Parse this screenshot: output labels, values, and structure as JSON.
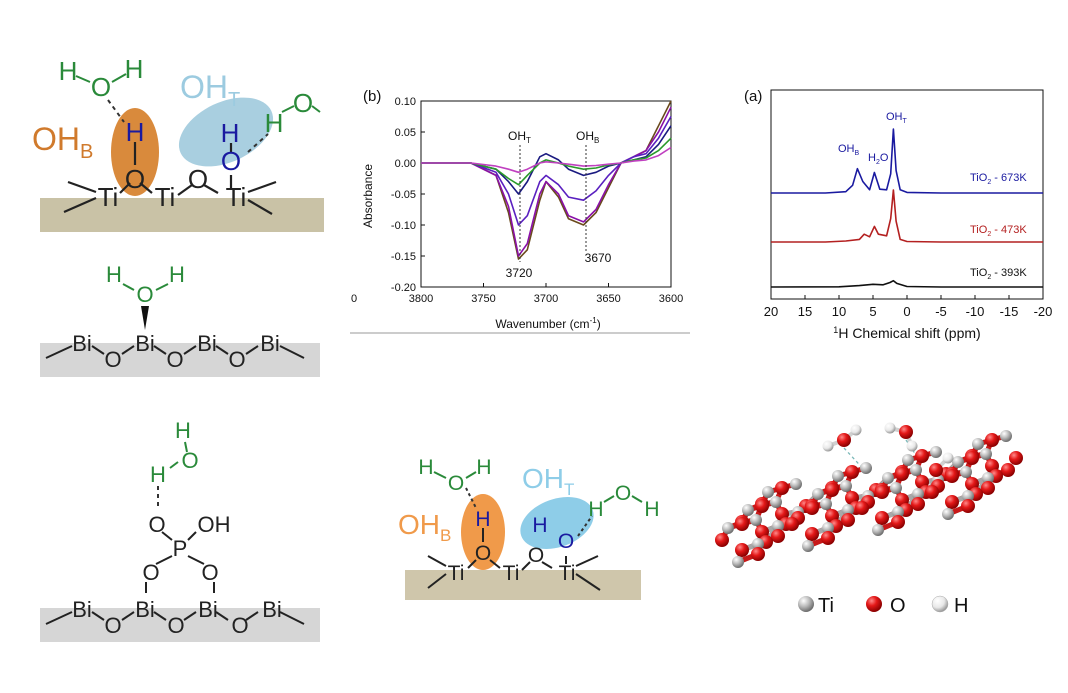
{
  "atoms": {
    "ti": "Ti",
    "o": "O",
    "h": "H",
    "bi": "Bi",
    "p": "P",
    "oh": "OH"
  },
  "labels": {
    "ohb_main": "OH",
    "ohb_sub": "B",
    "oht_main": "OH",
    "oht_sub": "T"
  },
  "ir_panel": {
    "panel_label": "(b)",
    "ylabel": "Absorbance",
    "xlabel": "Wavenumber (cm",
    "xlabel_sup": "-1",
    "xlabel_close": ")",
    "yticks": [
      "0.10",
      "0.05",
      "0.00",
      "-0.05",
      "-0.10",
      "-0.15",
      "-0.20"
    ],
    "xticks": [
      "3800",
      "3750",
      "3700",
      "3650",
      "3600"
    ],
    "annot_oht": "OH",
    "annot_oht_sub": "T",
    "annot_ohb": "OH",
    "annot_ohb_sub": "B",
    "peak1": "3720",
    "peak2": "3670",
    "left_cut_tick": "0"
  },
  "nmr_panel": {
    "panel_label": "(a)",
    "xlabel_sup": "1",
    "xlabel": "H Chemical shift (ppm)",
    "xticks": [
      "20",
      "15",
      "10",
      "5",
      "0",
      "-5",
      "-10",
      "-15",
      "-20"
    ],
    "peak_ohb": "OH",
    "peak_ohb_sub": "B",
    "peak_h2o_a": "H",
    "peak_h2o_sub": "2",
    "peak_h2o_b": "O",
    "peak_oht": "OH",
    "peak_oht_sub": "T",
    "trace1_a": "TiO",
    "trace1_sub": "2",
    "trace1_b": " - 673K",
    "trace2_a": "TiO",
    "trace2_sub": "2",
    "trace2_b": " - 473K",
    "trace3_a": "TiO",
    "trace3_sub": "2",
    "trace3_b": " - 393K"
  },
  "model_legend": {
    "ti": "Ti",
    "o": "O",
    "h": "H"
  },
  "chart_data": [
    {
      "type": "line",
      "title": "(b)",
      "xlabel": "Wavenumber (cm-1)",
      "ylabel": "Absorbance",
      "xlim": [
        3800,
        3600
      ],
      "ylim": [
        -0.2,
        0.1
      ],
      "annotations": [
        {
          "text": "OHT",
          "x": 3720
        },
        {
          "text": "OHB",
          "x": 3670
        }
      ],
      "peak_labels": [
        3720,
        3670
      ],
      "series": [
        {
          "color": "#6a4a1c",
          "x": [
            3800,
            3760,
            3740,
            3730,
            3722,
            3715,
            3705,
            3700,
            3690,
            3682,
            3670,
            3660,
            3650,
            3640,
            3630,
            3620,
            3610,
            3600
          ],
          "y": [
            0.0,
            0.0,
            -0.02,
            -0.08,
            -0.155,
            -0.14,
            -0.06,
            -0.03,
            -0.055,
            -0.09,
            -0.1,
            -0.08,
            -0.04,
            0.0,
            0.01,
            0.02,
            0.06,
            0.1
          ]
        },
        {
          "color": "#8a10a8",
          "x": [
            3800,
            3760,
            3740,
            3730,
            3722,
            3715,
            3705,
            3700,
            3690,
            3682,
            3670,
            3660,
            3650,
            3640,
            3630,
            3620,
            3610,
            3600
          ],
          "y": [
            0.0,
            0.0,
            -0.02,
            -0.07,
            -0.15,
            -0.13,
            -0.05,
            -0.03,
            -0.05,
            -0.085,
            -0.095,
            -0.075,
            -0.035,
            0.0,
            0.01,
            0.02,
            0.05,
            0.09
          ]
        },
        {
          "color": "#5a20c0",
          "x": [
            3800,
            3760,
            3740,
            3730,
            3722,
            3715,
            3705,
            3700,
            3690,
            3682,
            3670,
            3660,
            3650,
            3640,
            3630,
            3620,
            3610,
            3600
          ],
          "y": [
            0.0,
            0.0,
            -0.015,
            -0.05,
            -0.1,
            -0.085,
            -0.03,
            -0.02,
            -0.035,
            -0.055,
            -0.06,
            -0.045,
            -0.02,
            0.0,
            0.01,
            0.015,
            0.04,
            0.075
          ]
        },
        {
          "color": "#1a1a80",
          "x": [
            3800,
            3760,
            3740,
            3730,
            3722,
            3715,
            3705,
            3700,
            3690,
            3682,
            3670,
            3660,
            3650,
            3640,
            3630,
            3620,
            3610,
            3600
          ],
          "y": [
            0.0,
            0.0,
            -0.01,
            -0.03,
            -0.05,
            -0.03,
            0.01,
            0.015,
            0.005,
            -0.01,
            -0.02,
            -0.015,
            -0.005,
            0.0,
            0.005,
            0.01,
            0.03,
            0.06
          ]
        },
        {
          "color": "#2a9a2a",
          "x": [
            3800,
            3760,
            3740,
            3730,
            3722,
            3715,
            3705,
            3700,
            3690,
            3682,
            3670,
            3660,
            3650,
            3640,
            3630,
            3620,
            3610,
            3600
          ],
          "y": [
            0.0,
            0.0,
            -0.01,
            -0.025,
            -0.035,
            -0.02,
            0.0,
            0.005,
            0.0,
            -0.005,
            -0.01,
            -0.008,
            -0.003,
            0.0,
            0.005,
            0.008,
            0.02,
            0.04
          ]
        },
        {
          "color": "#c040c0",
          "x": [
            3800,
            3760,
            3740,
            3730,
            3722,
            3715,
            3705,
            3700,
            3690,
            3682,
            3670,
            3660,
            3650,
            3640,
            3630,
            3620,
            3610,
            3600
          ],
          "y": [
            0.0,
            0.0,
            -0.005,
            -0.01,
            -0.015,
            -0.01,
            0.0,
            0.002,
            0.0,
            -0.002,
            -0.005,
            -0.004,
            -0.002,
            0.0,
            0.003,
            0.005,
            0.012,
            0.025
          ]
        }
      ]
    },
    {
      "type": "line",
      "title": "(a)",
      "xlabel": "1H Chemical shift (ppm)",
      "xlim": [
        20,
        -20
      ],
      "annotations": [
        {
          "text": "OHB",
          "x": 7.3
        },
        {
          "text": "H2O",
          "x": 4.8
        },
        {
          "text": "OHT",
          "x": 2.0
        }
      ],
      "series": [
        {
          "name": "TiO2 - 673K",
          "color": "#1a1aa0",
          "x": [
            20,
            12,
            9,
            8,
            7.3,
            6.5,
            5.5,
            4.8,
            4,
            3,
            2.4,
            2,
            1.6,
            1,
            0,
            -5,
            -20
          ],
          "y": [
            0,
            0,
            0.02,
            0.12,
            0.38,
            0.18,
            0.05,
            0.32,
            0.06,
            0.05,
            0.3,
            1.0,
            0.35,
            0.05,
            0.01,
            0,
            0
          ]
        },
        {
          "name": "TiO2 - 473K",
          "color": "#b42020",
          "x": [
            20,
            12,
            9,
            7,
            6.3,
            5.5,
            4.8,
            4.2,
            3,
            2.4,
            2,
            1.6,
            1,
            0,
            -5,
            -20
          ],
          "y": [
            0,
            0,
            0.02,
            0.05,
            0.15,
            0.1,
            0.3,
            0.15,
            0.12,
            0.45,
            1.0,
            0.4,
            0.05,
            0.01,
            0,
            0
          ]
        },
        {
          "name": "TiO2 - 393K",
          "color": "#101010",
          "x": [
            20,
            10,
            7,
            5,
            3.5,
            2.5,
            2,
            1.5,
            0,
            -5,
            -20
          ],
          "y": [
            0,
            0.01,
            0.08,
            0.15,
            0.12,
            0.25,
            0.35,
            0.2,
            0.03,
            0,
            0
          ]
        }
      ]
    }
  ]
}
